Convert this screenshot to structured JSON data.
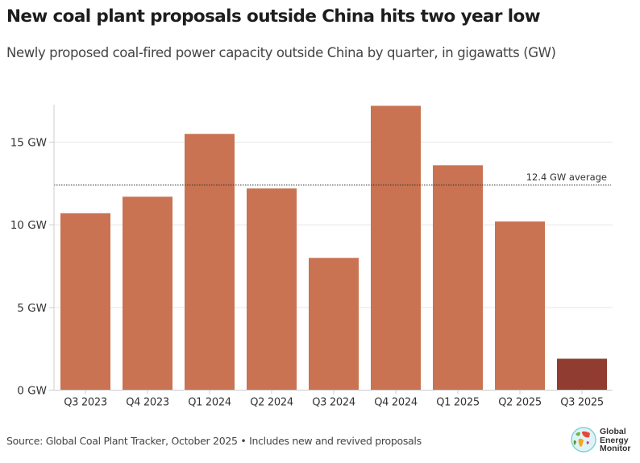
{
  "header": {
    "title": "New coal plant proposals outside China hits two year low",
    "subtitle": "Newly proposed coal-fired power capacity outside China by quarter, in gigawatts (GW)"
  },
  "chart_data": {
    "type": "bar",
    "title": "New coal plant proposals outside China hits two year low",
    "subtitle": "Newly proposed coal-fired power capacity outside China by quarter, in gigawatts (GW)",
    "xlabel": "",
    "ylabel": "",
    "categories": [
      "Q3 2023",
      "Q4 2023",
      "Q1 2024",
      "Q2 2024",
      "Q3 2024",
      "Q4 2024",
      "Q1 2025",
      "Q2 2025",
      "Q3 2025"
    ],
    "values": [
      10.7,
      11.7,
      15.5,
      12.2,
      8.0,
      17.2,
      13.6,
      10.2,
      1.9
    ],
    "highlight_index": 8,
    "colors": {
      "bar": "#c97352",
      "highlight": "#903c30",
      "grid": "#e6e6e6",
      "axis": "#cccccc",
      "reference": "#333333"
    },
    "ylim": [
      0,
      17.5
    ],
    "y_ticks": [
      0,
      5,
      10,
      15
    ],
    "y_tick_labels": [
      "0 GW",
      "5 GW",
      "10 GW",
      "15 GW"
    ],
    "grid": true,
    "legend": "none",
    "reference_line": {
      "value": 12.4,
      "label": "12.4 GW average",
      "style": "dotted"
    }
  },
  "footer": {
    "source": "Source: Global Coal Plant Tracker, October 2025 • Includes new and revived proposals",
    "logo_lines": [
      "Global",
      "Energy",
      "Monitor"
    ],
    "logo_icon": "globe-icon"
  }
}
